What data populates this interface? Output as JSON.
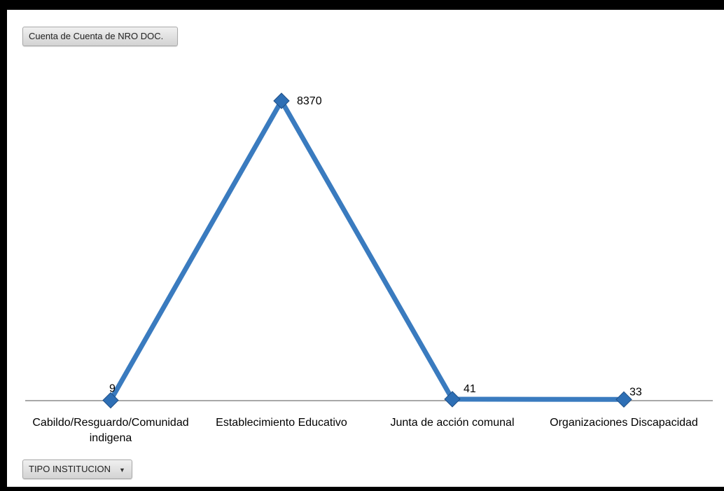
{
  "value_field_button": {
    "label": "Cuenta de Cuenta de NRO DOC."
  },
  "axis_field_button": {
    "label": "TIPO INSTITUCION",
    "icon": "dropdown-arrow-icon"
  },
  "colors": {
    "series": "#3a7bbf",
    "marker": "#2e6fb5"
  },
  "chart_data": {
    "type": "line",
    "categories": [
      [
        "Cabildo/Resguardo/Comunidad",
        "indigena"
      ],
      [
        "Establecimiento Educativo"
      ],
      [
        "Junta de acción comunal"
      ],
      [
        "Organizaciones Discapacidad"
      ]
    ],
    "values": [
      9,
      8370,
      41,
      33
    ],
    "data_labels": [
      "9",
      "8370",
      "41",
      "33"
    ],
    "ylim": [
      0,
      8800
    ],
    "grid": false,
    "legend": "none"
  }
}
